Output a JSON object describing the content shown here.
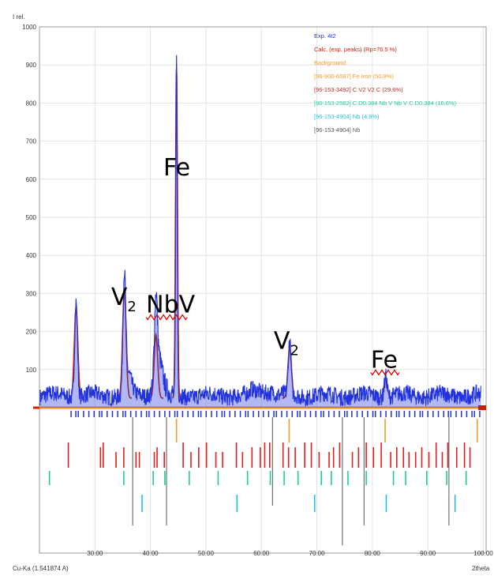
{
  "chart_data": {
    "type": "line",
    "ylabel": "I rel.",
    "xlabel": "2theta",
    "radiation": "Cu-Ka (1.541874 A)",
    "xlim": [
      20,
      100.5
    ],
    "ylim": [
      0,
      1000
    ],
    "x_ticks": [
      "30.00",
      "40.00",
      "50.00",
      "60.00",
      "70.00",
      "80.00",
      "90.00",
      "100.00"
    ],
    "x_tick_values": [
      30,
      40,
      50,
      60,
      70,
      80,
      90,
      100
    ],
    "y_ticks": [
      100,
      200,
      300,
      400,
      500,
      600,
      700,
      800,
      900,
      1000
    ],
    "grid": true,
    "colors": {
      "exp": "#2233dd",
      "calc": "#cc2200",
      "background": "#f59a2a",
      "fe": "#f59a2a",
      "cv2": "#e02020",
      "cnb": "#22c9a0",
      "nb_cyan": "#22bde8",
      "nb_gray": "#555555"
    },
    "legend": [
      {
        "label": "Exp. 4t2",
        "color": "#2233dd"
      },
      {
        "label": "Calc. (exp. peaks) (Rp=76.5 %)",
        "color": "#cc2200"
      },
      {
        "label": "Background",
        "color": "#f59a2a"
      },
      {
        "label": "[96-900-6597] Fe Iron (50.9%)",
        "color": "#f59a2a"
      },
      {
        "label": "[96-153-3492] C V2 V2 C (29.6%)",
        "color": "#e02020"
      },
      {
        "label": "[96-153-2582] C D0.384 Nb V Nb V C D0.384 (16.6%)",
        "color": "#22c9a0"
      },
      {
        "label": "[96-153-4904] Nb (4.9%)",
        "color": "#22bde8"
      },
      {
        "label": "[96-153-4904] Nb",
        "color": "#555555"
      }
    ],
    "annotations": [
      {
        "text": "Fe",
        "x": 44.6,
        "y": 610
      },
      {
        "text": "V2",
        "x": 35.2,
        "y": 270
      },
      {
        "text": "NbV",
        "x": 41.5,
        "y": 250
      },
      {
        "text": "V2",
        "x": 64.5,
        "y": 155
      },
      {
        "text": "Fe",
        "x": 82.0,
        "y": 105
      }
    ],
    "background_level": 25,
    "peaks": [
      {
        "x": 26.6,
        "y": 250
      },
      {
        "x": 35.3,
        "y": 300
      },
      {
        "x": 41.0,
        "y": 175
      },
      {
        "x": 44.7,
        "y": 910
      },
      {
        "x": 65.1,
        "y": 140
      },
      {
        "x": 82.4,
        "y": 55
      }
    ],
    "series": [
      {
        "name": "Exp. 4t2",
        "style": "profile"
      },
      {
        "name": "Calc. (exp. peaks) (Rp=76.5 %)",
        "style": "peaks"
      },
      {
        "name": "[96-900-6597] Fe Iron (50.9%)",
        "ticks": [
          44.7,
          65.0,
          82.3,
          98.9
        ]
      },
      {
        "name": "[96-153-3492] C V2 V2 C (29.6%)",
        "ticks": [
          25.2,
          31.0,
          31.5,
          33.8,
          35.2,
          37.4,
          38.0,
          40.7,
          41.2,
          42.5,
          45.9,
          47.3,
          48.7,
          50.1,
          51.8,
          53.0,
          55.5,
          56.6,
          58.3,
          59.8,
          60.6,
          61.5,
          63.9,
          64.9,
          66.1,
          67.8,
          69.0,
          70.4,
          72.2,
          73.0,
          74.1,
          76.4,
          77.5,
          78.9,
          80.2,
          81.6,
          83.3,
          84.4,
          85.6,
          86.6,
          87.8,
          88.9,
          90.2,
          91.5,
          92.6,
          93.6,
          95.2,
          96.6,
          97.6
        ]
      },
      {
        "name": "[96-153-2582] C D0.384 Nb V Nb V C D0.384 (16.6%)",
        "ticks": [
          21.8,
          35.2,
          40.5,
          42.6,
          47.0,
          52.2,
          57.5,
          61.6,
          64.1,
          66.6,
          70.8,
          72.6,
          75.6,
          78.9,
          83.8,
          86.0,
          89.8,
          93.4,
          96.9
        ]
      },
      {
        "name": "[96-153-4904] Nb (4.9%)",
        "ticks": [
          38.5,
          55.6,
          69.6,
          82.5,
          94.9
        ]
      },
      {
        "name": "[96-153-4904] Nb",
        "ticks": [
          36.8,
          42.9,
          62.0,
          74.6,
          78.5,
          93.8
        ]
      }
    ]
  }
}
